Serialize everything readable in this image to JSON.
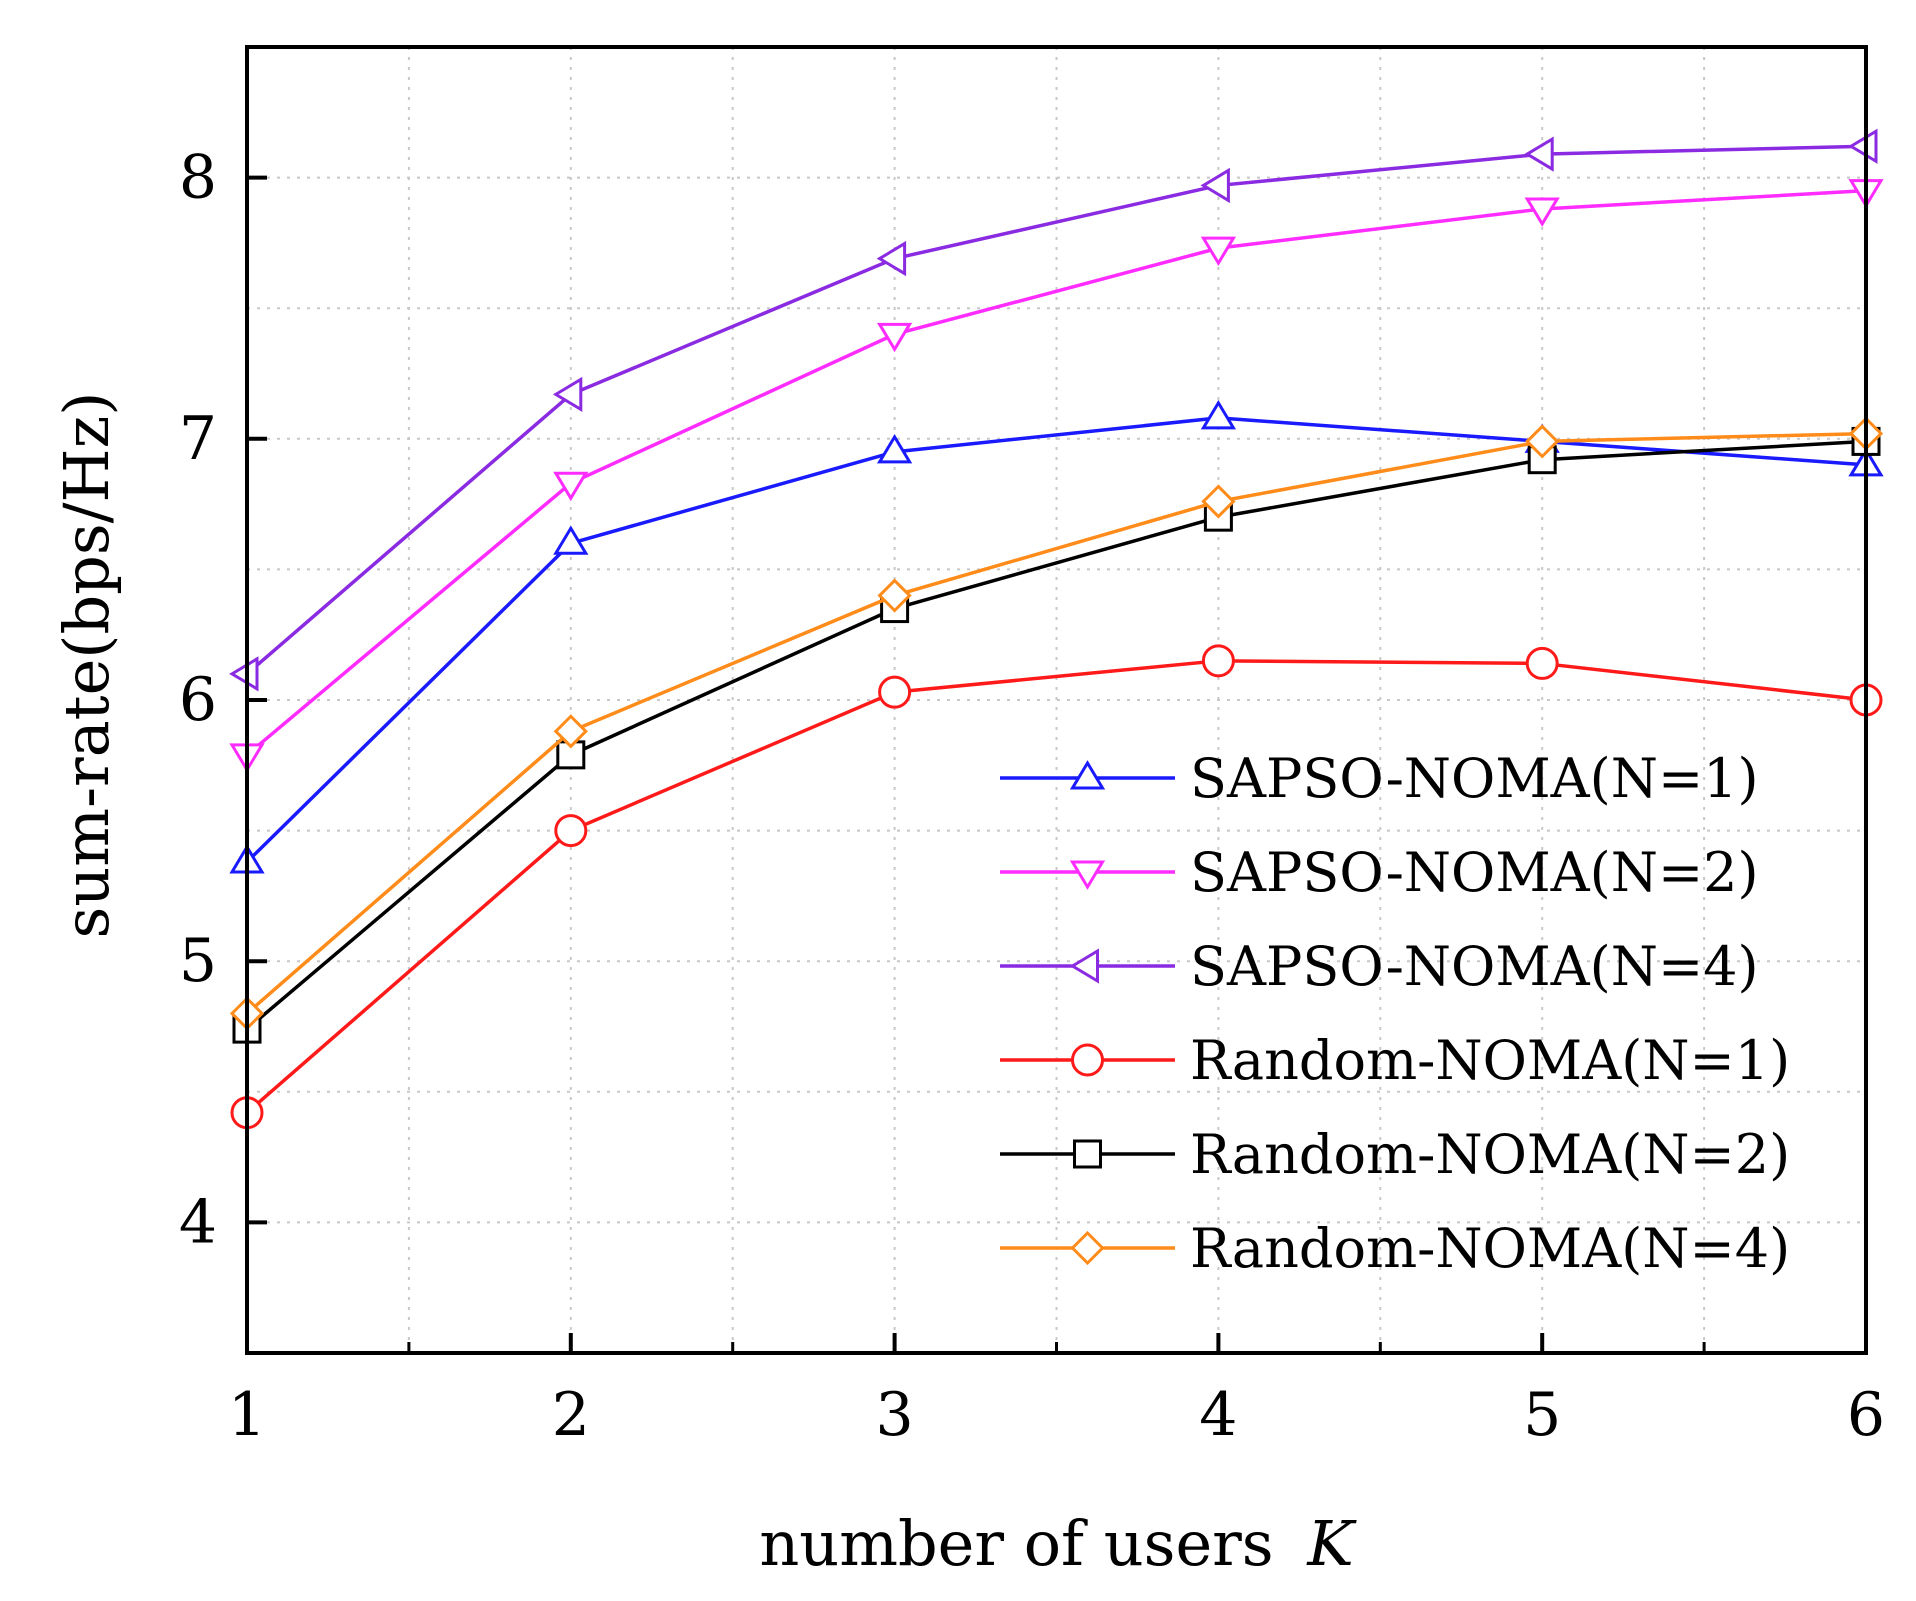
{
  "chart_data": {
    "type": "line",
    "title": "",
    "xlabel": "number of users",
    "xlabel_var": "K",
    "ylabel": "sum-rate(bps/Hz)",
    "x": [
      1,
      2,
      3,
      4,
      5,
      6
    ],
    "xlim": [
      1,
      6
    ],
    "ylim": [
      3.5,
      8.5
    ],
    "xticks": [
      1,
      2,
      3,
      4,
      5,
      6
    ],
    "xtick_labels": [
      "1",
      "2",
      "3",
      "4",
      "5",
      "6"
    ],
    "yticks": [
      4,
      5,
      6,
      7,
      8
    ],
    "ytick_labels": [
      "4",
      "5",
      "6",
      "7",
      "8"
    ],
    "grid": true,
    "legend_position": "bottom-right",
    "series": [
      {
        "name": "SAPSO-NOMA(N=1)",
        "color": "#1a1aff",
        "marker": "triangle-up",
        "values": [
          5.38,
          6.6,
          6.95,
          7.08,
          6.99,
          6.9
        ]
      },
      {
        "name": "SAPSO-NOMA(N=2)",
        "color": "#ff2cff",
        "marker": "triangle-down",
        "values": [
          5.79,
          6.83,
          7.4,
          7.73,
          7.88,
          7.95
        ]
      },
      {
        "name": "SAPSO-NOMA(N=4)",
        "color": "#8a2be2",
        "marker": "triangle-left",
        "values": [
          6.1,
          7.17,
          7.69,
          7.97,
          8.09,
          8.12
        ]
      },
      {
        "name": "Random-NOMA(N=1)",
        "color": "#ff1a1a",
        "marker": "circle",
        "values": [
          4.42,
          5.5,
          6.03,
          6.15,
          6.14,
          6.0
        ]
      },
      {
        "name": "Random-NOMA(N=2)",
        "color": "#000000",
        "marker": "square",
        "values": [
          4.74,
          5.79,
          6.35,
          6.7,
          6.92,
          6.99
        ]
      },
      {
        "name": "Random-NOMA(N=4)",
        "color": "#ff8c1a",
        "marker": "diamond",
        "values": [
          4.8,
          5.88,
          6.4,
          6.76,
          6.99,
          7.02
        ]
      }
    ]
  }
}
